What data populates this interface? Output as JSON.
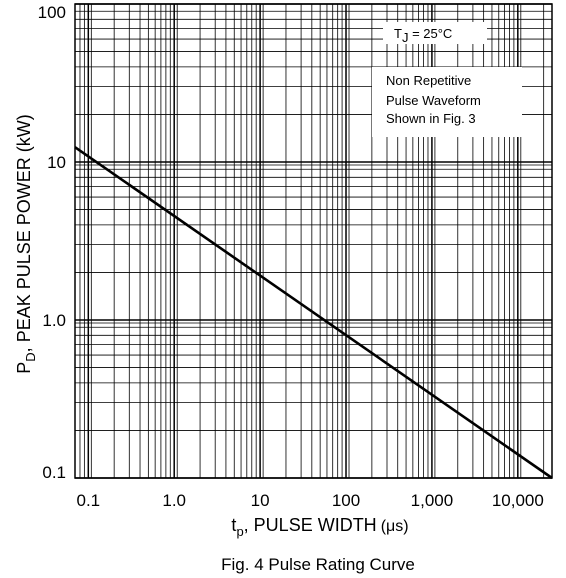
{
  "chart_data": {
    "type": "line",
    "title": "Fig. 4 Pulse Rating Curve",
    "xlabel": {
      "main": "t",
      "sub": "p",
      "rest": ", PULSE WIDTH",
      "unit": "(μs)"
    },
    "ylabel": {
      "main": "P",
      "sub": "D",
      "rest": ", PEAK PULSE POWER (kW)"
    },
    "x_scale": "log",
    "y_scale": "log",
    "xlim": [
      0.07,
      25000
    ],
    "ylim": [
      0.1,
      100
    ],
    "grid": true,
    "x_ticks": [
      {
        "value": 0.1,
        "label": "0.1"
      },
      {
        "value": 1,
        "label": "1.0"
      },
      {
        "value": 10,
        "label": "10"
      },
      {
        "value": 100,
        "label": "100"
      },
      {
        "value": 1000,
        "label": "1,000"
      },
      {
        "value": 10000,
        "label": "10,000"
      }
    ],
    "y_ticks": [
      {
        "value": 0.1,
        "label": "0.1"
      },
      {
        "value": 1,
        "label": "1.0"
      },
      {
        "value": 10,
        "label": "10"
      },
      {
        "value": 100,
        "label": "100"
      }
    ],
    "series": [
      {
        "x": [
          0.07,
          25000
        ],
        "y": [
          12.4,
          0.1
        ]
      }
    ],
    "annotations": {
      "temperature": {
        "main": "T",
        "sub": "J",
        "rest": " = 25°C"
      },
      "note_lines": [
        "Non Repetitive",
        "Pulse Waveform",
        "Shown in Fig. 3"
      ]
    }
  }
}
